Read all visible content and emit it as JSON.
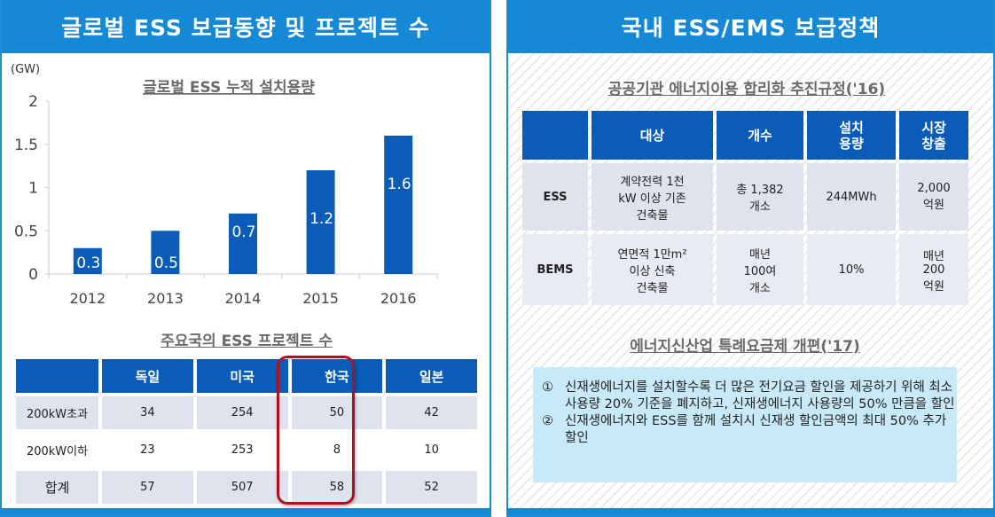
{
  "left_panel": {
    "title": "글로벌 ESS 보급동향 및 프로젝트 수",
    "chart_title": "글로벌 ESS 누적 설치용량",
    "table_title": "주요국의 ESS 프로젝트 수",
    "table": {
      "headers": [
        "",
        "독일",
        "미국",
        "한국",
        "일본"
      ],
      "rows": [
        [
          "200kW초과",
          "34",
          "254",
          "50",
          "42"
        ],
        [
          "200kW이하",
          "23",
          "253",
          "8",
          "10"
        ],
        [
          "합계",
          "57",
          "507",
          "58",
          "52"
        ]
      ],
      "highlighted_column": "한국"
    }
  },
  "chart_data": {
    "type": "bar",
    "title": "글로벌 ESS 누적 설치용량",
    "ylabel": "(GW)",
    "xlabel": "",
    "categories": [
      "2012",
      "2013",
      "2014",
      "2015",
      "2016"
    ],
    "values": [
      0.3,
      0.5,
      0.7,
      1.2,
      1.6
    ],
    "data_labels": [
      "0.3",
      "0.5",
      "0.7",
      "1.2",
      "1.6"
    ],
    "ylim": [
      0,
      2
    ],
    "yticks": [
      "0",
      "0.5",
      "1",
      "1.5",
      "2"
    ],
    "grid": false,
    "bar_color": "#0a5cb8"
  },
  "right_panel": {
    "title": "국내 ESS/EMS 보급정책",
    "table_title": "공공기관 에너지이용 합리화 추진규정('16)",
    "table": {
      "headers": [
        "",
        "대상",
        "개수",
        "설치\n용량",
        "시장\n창출"
      ],
      "rows": [
        [
          "ESS",
          "계약전력 1천\nkW 이상 기존\n건축물",
          "총 1,382\n개소",
          "244MWh",
          "2,000\n억원"
        ],
        [
          "BEMS",
          "연면적 1만m²\n이상 신축\n건축물",
          "매년\n100여\n개소",
          "10%",
          "매년\n200\n억원"
        ]
      ]
    },
    "box_title": "에너지신산업 특례요금제 개편('17)",
    "box_items": [
      {
        "num": "①",
        "text": "신재생에너지를 설치할수록 더 많은 전기요금 할인을 제공하기 위해 최소 사용량 20% 기준을 폐지하고, 신재생에너지 사용량의 50% 만큼을 할인"
      },
      {
        "num": "②",
        "text": "신재생에너지와 ESS를 함께 설치시 신재생 할인금액의 최대 50% 추가 할인"
      }
    ]
  },
  "colors": {
    "header": "#1588d6",
    "bar": "#0a5cb8",
    "highlight": "#b01020",
    "box": "#c8e9f8"
  }
}
